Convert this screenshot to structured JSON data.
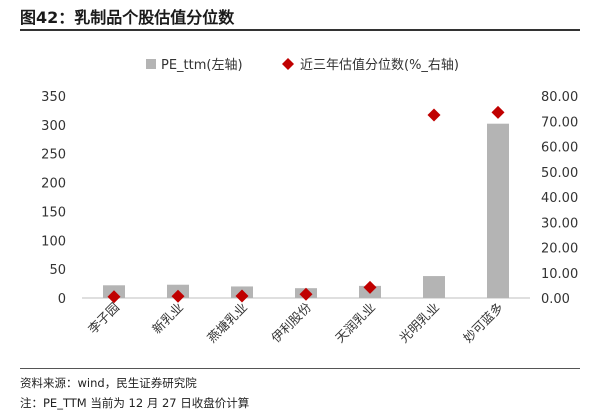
{
  "title": "图42：乳制品个股估值分位数",
  "source": "资料来源：wind，民生证券研究院",
  "note": "注：PE_TTM 当前为 12 月 27 日收盘价计算",
  "chart_data": {
    "type": "bar",
    "categories": [
      "李子园",
      "新乳业",
      "燕塘乳业",
      "伊利股份",
      "天润乳业",
      "光明乳业",
      "妙可蓝多"
    ],
    "series": [
      {
        "name": "PE_ttm(左轴)",
        "type": "bar",
        "axis": "left",
        "color": "#b4b4b4",
        "values": [
          22,
          23,
          20,
          17,
          21,
          38,
          302
        ]
      },
      {
        "name": "近三年估值分位数(%_右轴)",
        "type": "scatter",
        "axis": "right",
        "color": "#c00000",
        "marker": "diamond",
        "values": [
          0.5,
          0.7,
          0.8,
          1.5,
          4.2,
          72.5,
          73.5
        ]
      }
    ],
    "ylim_left": [
      0,
      350
    ],
    "yticks_left": [
      "0",
      "50",
      "100",
      "150",
      "200",
      "250",
      "300",
      "350"
    ],
    "ylim_right": [
      0,
      80
    ],
    "yticks_right": [
      "0.00",
      "10.00",
      "20.00",
      "30.00",
      "40.00",
      "50.00",
      "60.00",
      "70.00",
      "80.00"
    ],
    "legend_position": "top-center",
    "grid": false
  }
}
